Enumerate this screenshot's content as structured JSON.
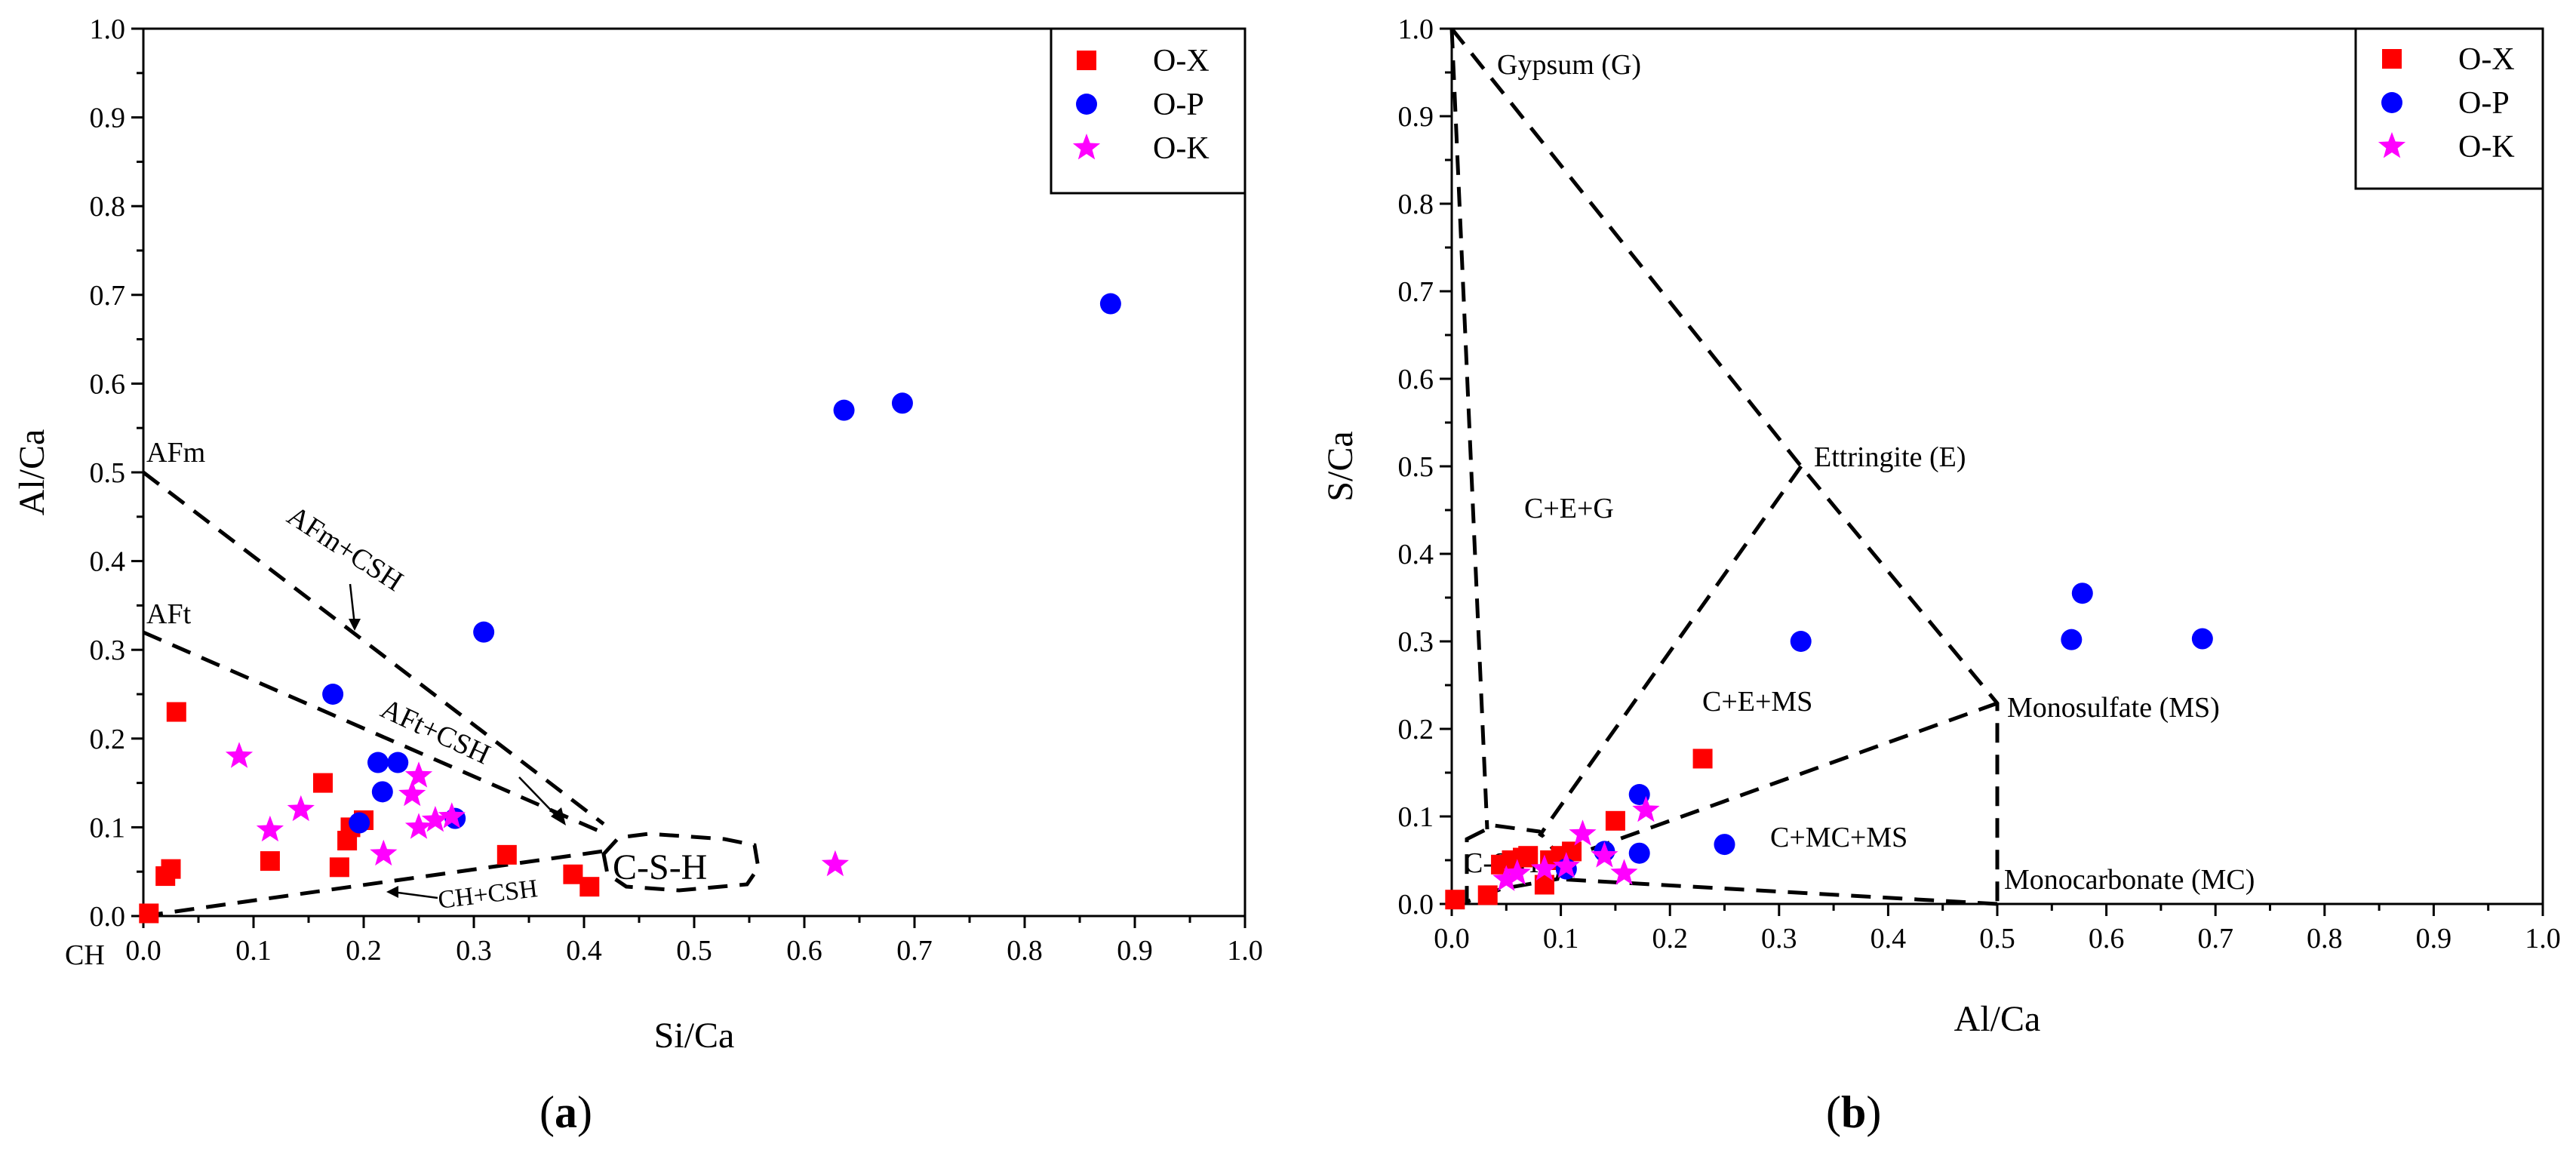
{
  "chart_data": [
    {
      "type": "scatter",
      "panel_label": "(a)",
      "panel_letter": "a",
      "xlabel": "Si/Ca",
      "ylabel": "Al/Ca",
      "xlim": [
        0,
        1.0
      ],
      "ylim": [
        0,
        1.0
      ],
      "xticks": [
        "0.0",
        "0.1",
        "0.2",
        "0.3",
        "0.4",
        "0.5",
        "0.6",
        "0.7",
        "0.8",
        "0.9",
        "1.0"
      ],
      "yticks": [
        "0.0",
        "0.1",
        "0.2",
        "0.3",
        "0.4",
        "0.5",
        "0.6",
        "0.7",
        "0.8",
        "0.9",
        "1.0"
      ],
      "legend_position": "top-right",
      "series": [
        {
          "name": "O-X",
          "marker": "square",
          "color": "#ff0000",
          "points": [
            [
              0.005,
              0.003
            ],
            [
              0.02,
              0.045
            ],
            [
              0.025,
              0.053
            ],
            [
              0.03,
              0.23
            ],
            [
              0.115,
              0.062
            ],
            [
              0.163,
              0.15
            ],
            [
              0.178,
              0.055
            ],
            [
              0.185,
              0.085
            ],
            [
              0.188,
              0.1
            ],
            [
              0.2,
              0.108
            ],
            [
              0.33,
              0.069
            ],
            [
              0.39,
              0.047
            ],
            [
              0.405,
              0.033
            ]
          ]
        },
        {
          "name": "O-P",
          "marker": "circle",
          "color": "#0000ff",
          "points": [
            [
              0.172,
              0.25
            ],
            [
              0.196,
              0.105
            ],
            [
              0.213,
              0.173
            ],
            [
              0.217,
              0.14
            ],
            [
              0.231,
              0.173
            ],
            [
              0.283,
              0.11
            ],
            [
              0.309,
              0.32
            ],
            [
              0.636,
              0.57
            ],
            [
              0.689,
              0.578
            ],
            [
              0.878,
              0.69
            ]
          ]
        },
        {
          "name": "O-K",
          "marker": "star",
          "color": "#ff00ff",
          "points": [
            [
              0.087,
              0.18
            ],
            [
              0.115,
              0.097
            ],
            [
              0.143,
              0.12
            ],
            [
              0.218,
              0.07
            ],
            [
              0.244,
              0.137
            ],
            [
              0.25,
              0.158
            ],
            [
              0.25,
              0.1
            ],
            [
              0.265,
              0.108
            ],
            [
              0.28,
              0.112
            ],
            [
              0.628,
              0.058
            ]
          ]
        }
      ],
      "annotations": [
        "AFm",
        "AFt",
        "AFm+CSH",
        "AFt+CSH",
        "C-S-H",
        "CH+CSH",
        "CH"
      ]
    },
    {
      "type": "scatter",
      "panel_label": "(b)",
      "panel_letter": "b",
      "xlabel": "Al/Ca",
      "ylabel": "S/Ca",
      "xlim": [
        0,
        1.0
      ],
      "ylim": [
        0,
        1.0
      ],
      "xticks": [
        "0.0",
        "0.1",
        "0.2",
        "0.3",
        "0.4",
        "0.5",
        "0.6",
        "0.7",
        "0.8",
        "0.9",
        "1.0"
      ],
      "yticks": [
        "0.0",
        "0.1",
        "0.2",
        "0.3",
        "0.4",
        "0.5",
        "0.6",
        "0.7",
        "0.8",
        "0.9",
        "1.0"
      ],
      "legend_position": "top-right",
      "series": [
        {
          "name": "O-X",
          "marker": "square",
          "color": "#ff0000",
          "points": [
            [
              0.003,
              0.005
            ],
            [
              0.033,
              0.01
            ],
            [
              0.045,
              0.045
            ],
            [
              0.055,
              0.05
            ],
            [
              0.065,
              0.053
            ],
            [
              0.07,
              0.055
            ],
            [
              0.085,
              0.022
            ],
            [
              0.09,
              0.05
            ],
            [
              0.1,
              0.055
            ],
            [
              0.11,
              0.06
            ],
            [
              0.15,
              0.095
            ],
            [
              0.23,
              0.166
            ]
          ]
        },
        {
          "name": "O-P",
          "marker": "circle",
          "color": "#0000ff",
          "points": [
            [
              0.105,
              0.04
            ],
            [
              0.14,
              0.06
            ],
            [
              0.172,
              0.125
            ],
            [
              0.172,
              0.058
            ],
            [
              0.25,
              0.068
            ],
            [
              0.32,
              0.3
            ],
            [
              0.568,
              0.302
            ],
            [
              0.578,
              0.355
            ],
            [
              0.688,
              0.303
            ]
          ]
        },
        {
          "name": "O-K",
          "marker": "star",
          "color": "#ff00ff",
          "points": [
            [
              0.05,
              0.028
            ],
            [
              0.06,
              0.035
            ],
            [
              0.085,
              0.04
            ],
            [
              0.105,
              0.043
            ],
            [
              0.12,
              0.08
            ],
            [
              0.14,
              0.055
            ],
            [
              0.158,
              0.035
            ],
            [
              0.178,
              0.107
            ]
          ]
        }
      ],
      "annotations": [
        "Gypsum (G)",
        "Ettringite (E)",
        "Monosulfate (MS)",
        "Monocarbonate (MC)",
        "C+E+G",
        "C+E+MS",
        "C+MC+MS",
        "C-S-H"
      ]
    }
  ]
}
